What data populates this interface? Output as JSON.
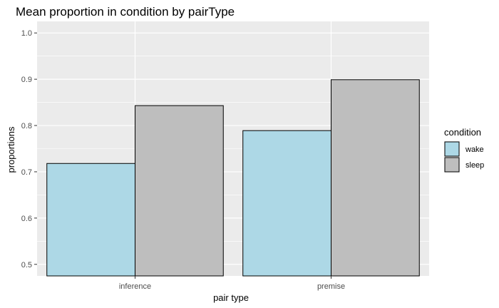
{
  "chart_data": {
    "type": "bar",
    "title": "Mean proportion in condition by pairType",
    "xlabel": "pair type",
    "ylabel": "proportions",
    "categories": [
      "inference",
      "premise"
    ],
    "series": [
      {
        "name": "wake",
        "values": [
          0.718,
          0.789
        ],
        "color": "#add8e6"
      },
      {
        "name": "sleep",
        "values": [
          0.843,
          0.899
        ],
        "color": "#bebebe"
      }
    ],
    "ylim": [
      0.475,
      1.025
    ],
    "yticks": [
      0.5,
      0.6,
      0.7,
      0.8,
      0.9,
      1.0
    ],
    "ytick_labels": [
      "0.5",
      "0.6",
      "0.7",
      "0.8",
      "0.9",
      "1.0"
    ],
    "grid": true,
    "legend": {
      "title": "condition",
      "position": "right"
    },
    "panel_background": "#ebebeb",
    "gridline_color": "#ffffff",
    "bar_outline": "#000000"
  }
}
